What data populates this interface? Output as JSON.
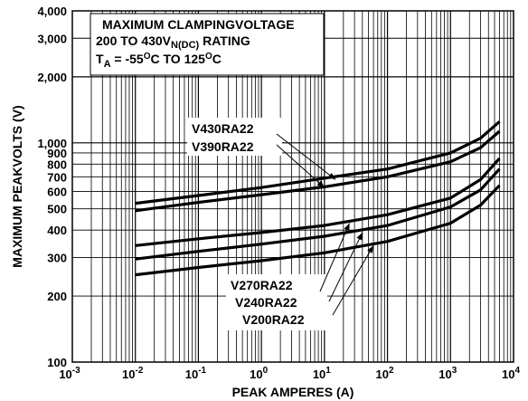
{
  "chart_data": {
    "type": "line",
    "title_lines": [
      "MAXIMUM CLAMPINGVOLTAGE",
      "200 TO 430V",
      "N(DC)",
      " RATING",
      "T",
      "A",
      " = -55",
      "O",
      "C TO 125",
      "O",
      "C"
    ],
    "xlabel": "PEAK AMPERES (A)",
    "ylabel": "MAXIMUM PEAKVOLTS (V)",
    "xscale": "log",
    "yscale": "log",
    "xlim": [
      0.001,
      10000
    ],
    "ylim": [
      100,
      4000
    ],
    "grid": true,
    "x_ticks": [
      {
        "value": 0.001,
        "base": "10",
        "exp": "-3"
      },
      {
        "value": 0.01,
        "base": "10",
        "exp": "-2"
      },
      {
        "value": 0.1,
        "base": "10",
        "exp": "-1"
      },
      {
        "value": 1,
        "base": "10",
        "exp": "0"
      },
      {
        "value": 10,
        "base": "10",
        "exp": "1"
      },
      {
        "value": 100,
        "base": "10",
        "exp": "2"
      },
      {
        "value": 1000,
        "base": "10",
        "exp": "3"
      },
      {
        "value": 10000,
        "base": "10",
        "exp": "4"
      }
    ],
    "y_ticks": [
      {
        "value": 100,
        "label": "100"
      },
      {
        "value": 200,
        "label": "200"
      },
      {
        "value": 300,
        "label": "300"
      },
      {
        "value": 400,
        "label": "400"
      },
      {
        "value": 500,
        "label": "500"
      },
      {
        "value": 600,
        "label": "600"
      },
      {
        "value": 700,
        "label": "700"
      },
      {
        "value": 800,
        "label": "800"
      },
      {
        "value": 900,
        "label": "900"
      },
      {
        "value": 1000,
        "label": "1,000"
      },
      {
        "value": 2000,
        "label": "2,000"
      },
      {
        "value": 3000,
        "label": "3,000"
      },
      {
        "value": 4000,
        "label": "4,000"
      }
    ],
    "series": [
      {
        "name": "V430RA22",
        "x": [
          0.01,
          0.1,
          1,
          10,
          100,
          1000,
          3000,
          6000
        ],
        "y": [
          530,
          575,
          625,
          690,
          760,
          900,
          1050,
          1250
        ]
      },
      {
        "name": "V390RA22",
        "x": [
          0.01,
          0.1,
          1,
          10,
          100,
          1000,
          3000,
          6000
        ],
        "y": [
          490,
          535,
          580,
          630,
          700,
          820,
          950,
          1130
        ]
      },
      {
        "name": "V270RA22",
        "x": [
          0.01,
          0.1,
          1,
          10,
          100,
          1000,
          3000,
          6000
        ],
        "y": [
          340,
          365,
          390,
          420,
          470,
          560,
          680,
          850
        ]
      },
      {
        "name": "V240RA22",
        "x": [
          0.01,
          0.1,
          1,
          10,
          100,
          1000,
          3000,
          6000
        ],
        "y": [
          295,
          320,
          345,
          375,
          420,
          510,
          610,
          760
        ]
      },
      {
        "name": "V200RA22",
        "x": [
          0.01,
          0.1,
          1,
          10,
          100,
          1000,
          3000,
          6000
        ],
        "y": [
          250,
          270,
          290,
          315,
          355,
          430,
          520,
          640
        ]
      }
    ],
    "annotations": [
      {
        "text": "V430RA22",
        "point": [
          15,
          680
        ]
      },
      {
        "text": "V390RA22",
        "point": [
          10,
          625
        ]
      },
      {
        "text": "V270RA22",
        "point": [
          25,
          430
        ]
      },
      {
        "text": "V240RA22",
        "point": [
          40,
          390
        ]
      },
      {
        "text": "V200RA22",
        "point": [
          60,
          340
        ]
      }
    ]
  }
}
